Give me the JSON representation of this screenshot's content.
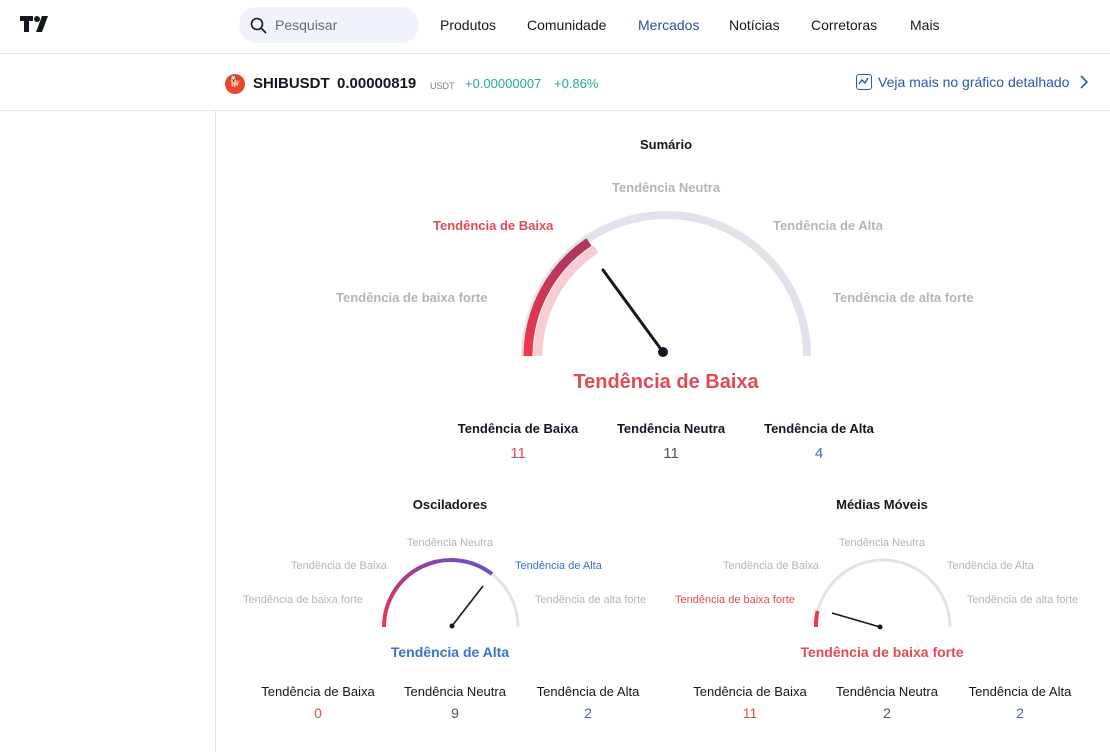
{
  "header": {
    "search_placeholder": "Pesquisar",
    "nav": [
      "Produtos",
      "Comunidade",
      "Mercados",
      "Notícias",
      "Corretoras",
      "Mais"
    ]
  },
  "ticker": {
    "symbol": "SHIBUSDT",
    "price": "0.00000819",
    "currency": "USDT",
    "change": "+0.00000007",
    "change_pct": "+0.86%",
    "detail_link": "Veja mais no gráfico detalhado"
  },
  "summary": {
    "title": "Sumário",
    "labels": {
      "neutral": "Tendência Neutra",
      "sell": "Tendência de Baixa",
      "buy": "Tendência de Alta",
      "strong_sell": "Tendência de baixa forte",
      "strong_buy": "Tendência de alta forte"
    },
    "result": "Tendência de Baixa",
    "counts": [
      {
        "label": "Tendência de Baixa",
        "value": "11"
      },
      {
        "label": "Tendência Neutra",
        "value": "11"
      },
      {
        "label": "Tendência de Alta",
        "value": "4"
      }
    ]
  },
  "oscillators": {
    "title": "Osciladores",
    "labels": {
      "neutral": "Tendência Neutra",
      "sell": "Tendência de Baixa",
      "buy": "Tendência de Alta",
      "strong_sell": "Tendência de baixa forte",
      "strong_buy": "Tendência de alta forte"
    },
    "result": "Tendência de Alta",
    "counts": [
      {
        "label": "Tendência de Baixa",
        "value": "0"
      },
      {
        "label": "Tendência Neutra",
        "value": "9"
      },
      {
        "label": "Tendência de Alta",
        "value": "2"
      }
    ]
  },
  "moving_averages": {
    "title": "Médias Móveis",
    "labels": {
      "neutral": "Tendência Neutra",
      "sell": "Tendência de Baixa",
      "buy": "Tendência de Alta",
      "strong_sell": "Tendência de baixa forte",
      "strong_buy": "Tendência de alta forte"
    },
    "result": "Tendência de baixa forte",
    "counts": [
      {
        "label": "Tendência de Baixa",
        "value": "11"
      },
      {
        "label": "Tendência Neutra",
        "value": "2"
      },
      {
        "label": "Tendência de Alta",
        "value": "2"
      }
    ]
  },
  "colors": {
    "accent": "#2962ff",
    "sell": "#e04b55",
    "buy": "#3a73c7",
    "positive": "#22ab94"
  }
}
